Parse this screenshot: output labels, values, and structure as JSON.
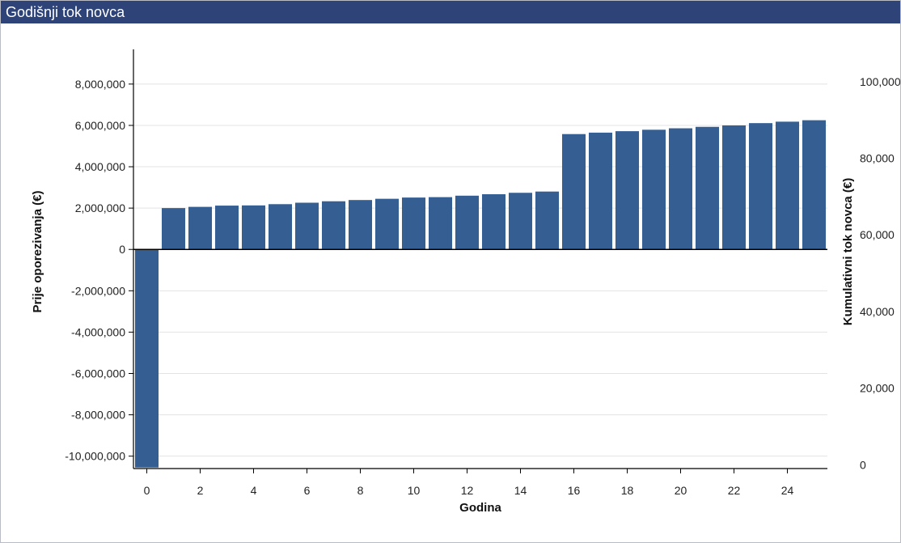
{
  "panel": {
    "title": "Godišnji tok novca"
  },
  "colors": {
    "header_bg": "#2e4378",
    "bar": "#355e92",
    "grid": "#e3e3e3",
    "axis": "#000000"
  },
  "chart_data": {
    "type": "bar",
    "title": "",
    "xlabel": "Godina",
    "ylabel": "Prije oporezivanja (€)",
    "y2label": "Kumulativni tok novca (€)",
    "categories": [
      0,
      1,
      2,
      3,
      4,
      5,
      6,
      7,
      8,
      9,
      10,
      11,
      12,
      13,
      14,
      15,
      16,
      17,
      18,
      19,
      20,
      21,
      22,
      23,
      24,
      25
    ],
    "x_tick_labels": [
      "0",
      "2",
      "4",
      "6",
      "8",
      "10",
      "12",
      "14",
      "16",
      "18",
      "20",
      "22",
      "24"
    ],
    "x_tick_values": [
      0,
      2,
      4,
      6,
      8,
      10,
      12,
      14,
      16,
      18,
      20,
      22,
      24
    ],
    "series": [
      {
        "values": [
          -10550000,
          2000000,
          2060000,
          2120000,
          2130000,
          2190000,
          2260000,
          2330000,
          2390000,
          2450000,
          2510000,
          2530000,
          2600000,
          2670000,
          2740000,
          2800000,
          5580000,
          5650000,
          5720000,
          5790000,
          5860000,
          5930000,
          6000000,
          6110000,
          6180000,
          6250000
        ]
      }
    ],
    "ylim": [
      -10600000,
      9600000
    ],
    "y_ticks": [
      8000000,
      6000000,
      4000000,
      2000000,
      0,
      -2000000,
      -4000000,
      -6000000,
      -8000000,
      -10000000
    ],
    "y_tick_labels": [
      "8,000,000",
      "6,000,000",
      "4,000,000",
      "2,000,000",
      "0",
      "-2,000,000",
      "-4,000,000",
      "-6,000,000",
      "-8,000,000",
      "-10,000,000"
    ],
    "y2_ticks": [
      100000,
      80000,
      60000,
      40000,
      20000,
      0
    ],
    "y2_tick_labels": [
      "100,000",
      "80,000",
      "60,000",
      "40,000",
      "20,000",
      "0"
    ],
    "y2lim": [
      -1000,
      108000
    ],
    "grid": true,
    "legend": "none"
  }
}
